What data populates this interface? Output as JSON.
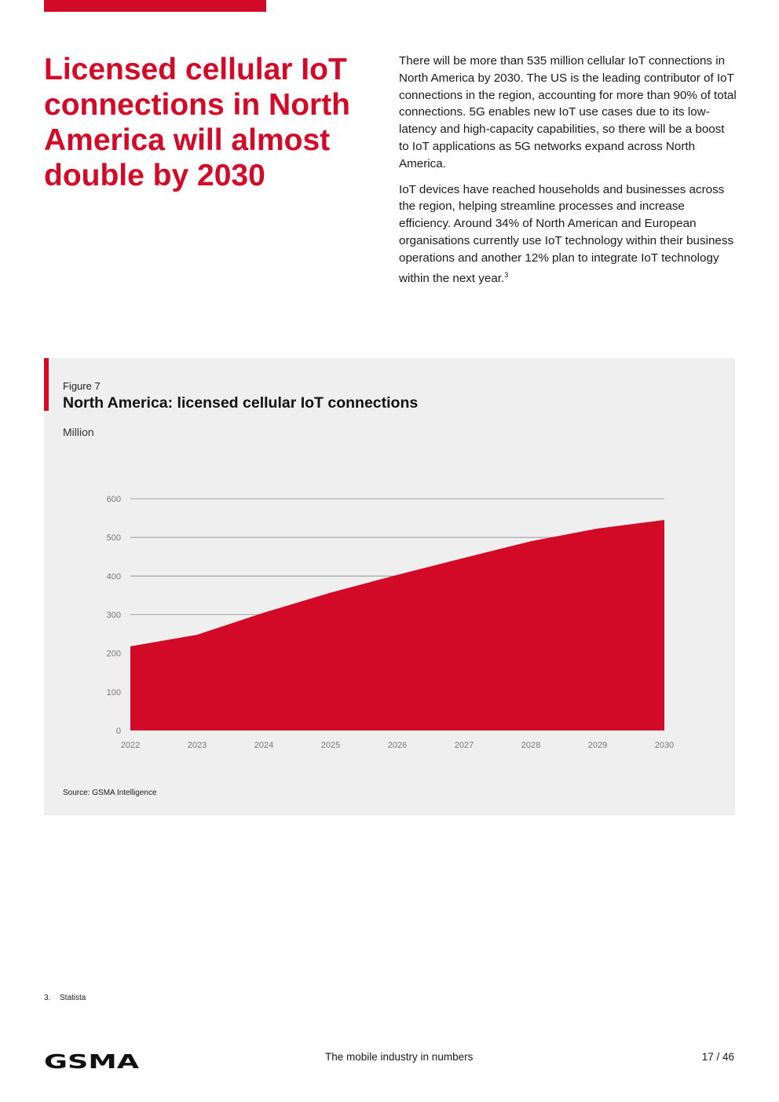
{
  "headline": "Licensed cellular IoT connections in North America will almost double by 2030",
  "body": {
    "p1": "There will be more than 535 million cellular IoT connections in North America by 2030. The US is the leading contributor of IoT connections in the region, accounting for more than 90% of total connections. 5G enables new IoT use cases due to its low-latency and high-capacity capabilities, so there will be a boost to IoT applications as 5G networks expand across North America.",
    "p2": "IoT devices have reached households and businesses across the region, helping streamline processes and increase efficiency. Around 34% of North American and European organisations currently use IoT technology within their business operations and another 12% plan to integrate IoT technology within the next year.",
    "p2_ref": "3"
  },
  "figure": {
    "label": "Figure 7",
    "title": "North America: licensed cellular IoT connections",
    "unit": "Million",
    "source": "Source: GSMA Intelligence"
  },
  "chart_data": {
    "type": "area",
    "title": "North America: licensed cellular IoT connections",
    "ylabel": "Million",
    "x": [
      "2022",
      "2023",
      "2024",
      "2025",
      "2026",
      "2027",
      "2028",
      "2029",
      "2030"
    ],
    "series": [
      {
        "name": "Licensed cellular IoT connections",
        "values": [
          218,
          248,
          305,
          357,
          403,
          447,
          490,
          523,
          545
        ]
      }
    ],
    "ylim": [
      0,
      600
    ],
    "yticks": [
      0,
      100,
      200,
      300,
      400,
      500,
      600
    ],
    "grid": true,
    "color": "#d20a27"
  },
  "footnote": {
    "number": "3.",
    "text": "Statista"
  },
  "footer": {
    "logo_text": "GSMA",
    "center_text": "The mobile industry in numbers",
    "page": "17 / 46"
  },
  "colors": {
    "accent": "#d20a27",
    "panel": "#efefef"
  }
}
